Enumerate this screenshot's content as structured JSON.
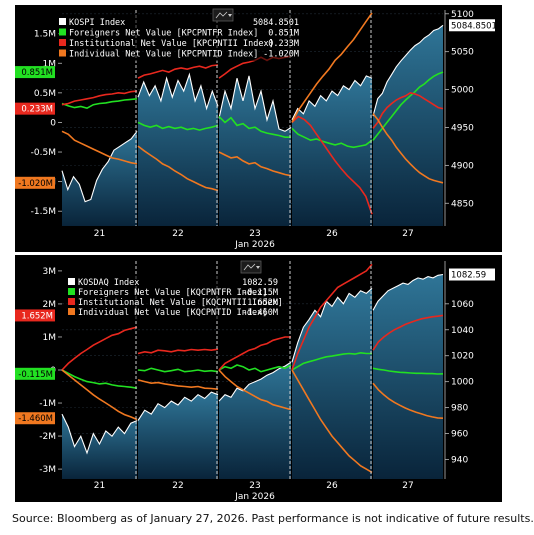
{
  "source_note": "Source: Bloomberg as of January 27, 2026. Past performance is not indicative of future results.",
  "chart_data": [
    {
      "type": "line",
      "x_labels": [
        "21",
        "22",
        "23",
        "26",
        "27"
      ],
      "xlabel": "Jan 2026",
      "right_axis": {
        "ticks": [
          "5100",
          "5050",
          "5000",
          "4950",
          "4900",
          "4850"
        ],
        "ylim": [
          4820,
          5105
        ]
      },
      "left_axis": {
        "ticks": [
          "1.5M",
          "1M",
          "0.5M",
          "0",
          "-0.5M",
          "-1M",
          "-1.5M"
        ],
        "ylim": [
          -1.75,
          1.9
        ]
      },
      "last_value_tags": {
        "index": "5084.8501",
        "foreign": "0.851M",
        "institutional": "0.233M",
        "individual": "-1.020M"
      },
      "legend": [
        {
          "name": "KOSPI Index",
          "value": "5084.8501",
          "color": "#ffffff"
        },
        {
          "name": "Foreigners Net Value [KPCPNTFR Index]",
          "value": "0.851M",
          "color": "#22e022"
        },
        {
          "name": "Institutional Net Value [KPCPNTII Index]",
          "value": "0.233M",
          "color": "#e8281e"
        },
        {
          "name": "Individual Net Value [KPCPNTID Index]",
          "value": "-1.020M",
          "color": "#f07820"
        }
      ],
      "colors": {
        "index": "#ffffff",
        "foreign": "#22e022",
        "institutional": "#e8281e",
        "individual": "#f07820"
      },
      "days": [
        {
          "index": [
            4893,
            4868,
            4885,
            4875,
            4852,
            4855,
            4880,
            4895,
            4905,
            4920,
            4925,
            4930,
            4935,
            4945
          ],
          "foreign": [
            0.32,
            0.28,
            0.25,
            0.27,
            0.24,
            0.3,
            0.32,
            0.33,
            0.35,
            0.36,
            0.38,
            0.39,
            0.4
          ],
          "institutional": [
            0.3,
            0.32,
            0.36,
            0.38,
            0.4,
            0.42,
            0.45,
            0.47,
            0.48,
            0.5,
            0.49,
            0.52,
            0.53
          ],
          "individual": [
            -0.15,
            -0.2,
            -0.3,
            -0.35,
            -0.4,
            -0.45,
            -0.5,
            -0.55,
            -0.6,
            -0.62,
            -0.65,
            -0.68,
            -0.7
          ]
        },
        {
          "index": [
            4990,
            5010,
            4992,
            5005,
            4985,
            5015,
            4990,
            5012,
            4998,
            5020,
            4985,
            5005,
            4975,
            4998,
            4978
          ],
          "foreign": [
            0.0,
            -0.05,
            -0.08,
            -0.05,
            -0.1,
            -0.07,
            -0.1,
            -0.08,
            -0.12,
            -0.1,
            -0.13,
            -0.1,
            -0.08,
            -0.05
          ],
          "institutional": [
            0.75,
            0.8,
            0.82,
            0.85,
            0.88,
            0.85,
            0.9,
            0.92,
            0.9,
            0.93,
            0.95,
            0.92,
            0.96,
            0.97
          ],
          "individual": [
            -0.4,
            -0.48,
            -0.55,
            -0.62,
            -0.7,
            -0.75,
            -0.82,
            -0.88,
            -0.95,
            -1.0,
            -1.05,
            -1.1,
            -1.12,
            -1.15
          ]
        },
        {
          "index": [
            4962,
            4998,
            4975,
            5015,
            4985,
            5018,
            4975,
            4998,
            4960,
            4985,
            4948,
            4945,
            4950
          ],
          "foreign": [
            0.1,
            0.0,
            0.08,
            -0.05,
            -0.02,
            -0.1,
            -0.08,
            -0.15,
            -0.18,
            -0.2,
            -0.22,
            -0.25,
            -0.25
          ],
          "institutional": [
            0.75,
            0.82,
            0.9,
            0.95,
            1.0,
            1.02,
            1.05,
            1.1,
            1.05,
            1.1,
            1.08,
            1.1,
            1.12
          ],
          "individual": [
            -0.5,
            -0.55,
            -0.6,
            -0.58,
            -0.65,
            -0.7,
            -0.68,
            -0.75,
            -0.78,
            -0.82,
            -0.85,
            -0.88,
            -0.9
          ]
        },
        {
          "index": [
            4960,
            4975,
            4968,
            4985,
            4978,
            4992,
            4985,
            4998,
            4992,
            5005,
            5000,
            5012,
            5005,
            5018,
            5015
          ],
          "foreign": [
            -0.1,
            -0.2,
            -0.25,
            -0.3,
            -0.28,
            -0.32,
            -0.35,
            -0.38,
            -0.35,
            -0.4,
            -0.42,
            -0.4,
            -0.38,
            -0.3
          ],
          "institutional": [
            0.0,
            0.1,
            0.05,
            -0.05,
            -0.2,
            -0.35,
            -0.5,
            -0.65,
            -0.78,
            -0.9,
            -1.0,
            -1.1,
            -1.25,
            -1.55
          ],
          "individual": [
            0.0,
            0.2,
            0.35,
            0.5,
            0.65,
            0.78,
            0.9,
            1.05,
            1.15,
            1.28,
            1.4,
            1.55,
            1.7,
            1.85
          ]
        },
        {
          "index": [
            4965,
            4988,
            4995,
            5010,
            5020,
            5030,
            5038,
            5045,
            5052,
            5058,
            5062,
            5068,
            5072,
            5078,
            5080,
            5084.85
          ],
          "foreign": [
            -0.3,
            -0.2,
            -0.1,
            0.0,
            0.1,
            0.2,
            0.3,
            0.38,
            0.45,
            0.52,
            0.6,
            0.65,
            0.72,
            0.78,
            0.82,
            0.851
          ],
          "institutional": [
            -0.1,
            0.0,
            0.15,
            0.25,
            0.32,
            0.38,
            0.42,
            0.45,
            0.5,
            0.48,
            0.45,
            0.4,
            0.35,
            0.3,
            0.25,
            0.233
          ],
          "individual": [
            0.15,
            0.05,
            -0.08,
            -0.2,
            -0.3,
            -0.42,
            -0.52,
            -0.62,
            -0.7,
            -0.78,
            -0.85,
            -0.9,
            -0.95,
            -0.98,
            -1.0,
            -1.02
          ]
        }
      ]
    },
    {
      "type": "line",
      "x_labels": [
        "21",
        "22",
        "23",
        "26",
        "27"
      ],
      "xlabel": "Jan 2026",
      "right_axis": {
        "ticks": [
          "1060",
          "1040",
          "1020",
          "1000",
          "980",
          "960",
          "940"
        ],
        "ylim": [
          925,
          1093
        ]
      },
      "left_axis": {
        "ticks": [
          "3M",
          "2M",
          "1M",
          "0",
          "-1M",
          "-2M",
          "-3M"
        ],
        "ylim": [
          -3.3,
          3.3
        ]
      },
      "last_value_tags": {
        "index": "1082.59",
        "foreign": "-0.115M",
        "institutional": "1.652M",
        "individual": "-1.460M"
      },
      "legend": [
        {
          "name": "KOSDAQ Index",
          "value": "1082.59",
          "color": "#ffffff"
        },
        {
          "name": "Foreigners Net Value [KQCPNTFR Index]",
          "value": "-0.115M",
          "color": "#22e022"
        },
        {
          "name": "Institutional Net Value [KQCPNTII Index]",
          "value": "1.652M",
          "color": "#e8281e"
        },
        {
          "name": "Individual Net Value [KQCPNTID Index]",
          "value": "-1.460M",
          "color": "#f07820"
        }
      ],
      "colors": {
        "index": "#ffffff",
        "foreign": "#22e022",
        "institutional": "#e8281e",
        "individual": "#f07820"
      },
      "days": [
        {
          "index": [
            975,
            965,
            950,
            958,
            945,
            960,
            952,
            962,
            958,
            965,
            960,
            968,
            970
          ],
          "foreign": [
            0.0,
            -0.1,
            -0.2,
            -0.28,
            -0.35,
            -0.38,
            -0.42,
            -0.4,
            -0.45,
            -0.48,
            -0.5,
            -0.52,
            -0.55
          ],
          "institutional": [
            0.0,
            0.2,
            0.35,
            0.5,
            0.62,
            0.75,
            0.85,
            0.95,
            1.05,
            1.1,
            1.2,
            1.25,
            1.3
          ],
          "individual": [
            0.0,
            -0.15,
            -0.3,
            -0.45,
            -0.6,
            -0.75,
            -0.88,
            -1.0,
            -1.12,
            -1.25,
            -1.35,
            -1.42,
            -1.5
          ]
        },
        {
          "index": [
            970,
            978,
            975,
            983,
            980,
            985,
            982,
            988,
            985,
            990,
            987,
            992,
            990
          ],
          "foreign": [
            0.0,
            -0.02,
            0.05,
            0.0,
            -0.05,
            -0.02,
            0.02,
            -0.05,
            -0.03,
            0.0,
            -0.04,
            -0.02,
            -0.05
          ],
          "institutional": [
            0.5,
            0.55,
            0.52,
            0.6,
            0.58,
            0.55,
            0.6,
            0.58,
            0.62,
            0.6,
            0.62,
            0.6,
            0.63
          ],
          "individual": [
            -0.3,
            -0.35,
            -0.4,
            -0.38,
            -0.42,
            -0.45,
            -0.48,
            -0.5,
            -0.52,
            -0.5,
            -0.55,
            -0.56,
            -0.58
          ]
        },
        {
          "index": [
            985,
            990,
            988,
            995,
            993,
            998,
            1000,
            1002,
            1005,
            1007,
            1010,
            1012,
            1015
          ],
          "foreign": [
            0.0,
            0.1,
            0.05,
            0.15,
            0.1,
            0.0,
            0.05,
            -0.05,
            0.0,
            0.05,
            0.1,
            0.05,
            0.15
          ],
          "institutional": [
            0.0,
            0.2,
            0.3,
            0.4,
            0.5,
            0.6,
            0.65,
            0.75,
            0.8,
            0.9,
            0.95,
            1.0,
            1.0
          ],
          "individual": [
            0.0,
            -0.2,
            -0.35,
            -0.5,
            -0.6,
            -0.7,
            -0.8,
            -0.9,
            -0.95,
            -1.05,
            -1.1,
            -1.15,
            -1.2
          ]
        },
        {
          "index": [
            1015,
            1030,
            1042,
            1048,
            1055,
            1050,
            1062,
            1058,
            1065,
            1060,
            1068,
            1065,
            1070,
            1068,
            1072
          ],
          "foreign": [
            0.0,
            0.1,
            0.2,
            0.25,
            0.3,
            0.35,
            0.4,
            0.42,
            0.45,
            0.48,
            0.5,
            0.48,
            0.52,
            0.5,
            0.5
          ],
          "institutional": [
            0.0,
            0.5,
            0.9,
            1.3,
            1.6,
            1.9,
            2.1,
            2.3,
            2.5,
            2.6,
            2.7,
            2.8,
            2.9,
            3.0,
            3.2
          ],
          "individual": [
            0.0,
            -0.3,
            -0.6,
            -0.9,
            -1.2,
            -1.5,
            -1.75,
            -2.0,
            -2.2,
            -2.4,
            -2.6,
            -2.75,
            -2.9,
            -3.0,
            -3.1
          ]
        },
        {
          "index": [
            1055,
            1062,
            1066,
            1070,
            1072,
            1074,
            1076,
            1075,
            1078,
            1080,
            1079,
            1081,
            1080,
            1082,
            1082.59
          ],
          "foreign": [
            0.05,
            0.02,
            0.0,
            -0.03,
            -0.05,
            -0.07,
            -0.08,
            -0.09,
            -0.1,
            -0.1,
            -0.11,
            -0.11,
            -0.12,
            -0.115
          ],
          "institutional": [
            0.6,
            0.85,
            1.0,
            1.12,
            1.22,
            1.3,
            1.38,
            1.44,
            1.5,
            1.55,
            1.58,
            1.61,
            1.63,
            1.652
          ],
          "individual": [
            -0.4,
            -0.6,
            -0.75,
            -0.88,
            -0.98,
            -1.07,
            -1.15,
            -1.22,
            -1.28,
            -1.33,
            -1.38,
            -1.42,
            -1.45,
            -1.46
          ]
        }
      ]
    }
  ]
}
